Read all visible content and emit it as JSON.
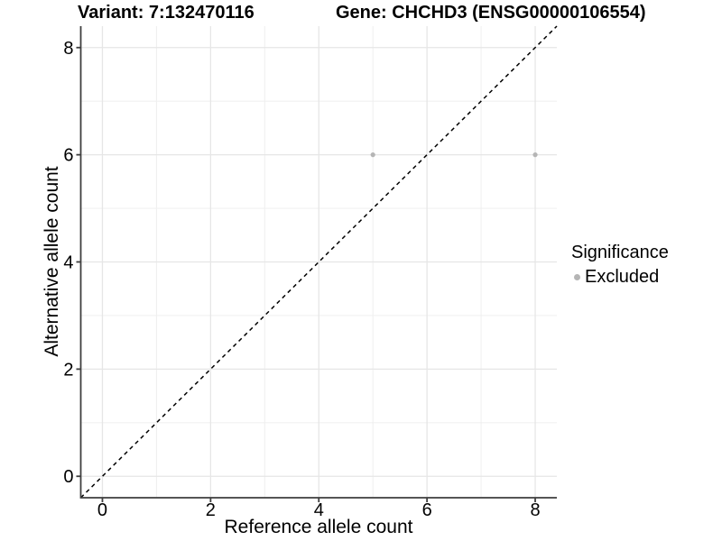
{
  "chart_data": {
    "type": "scatter",
    "titles": [
      "Variant: 7:132470116",
      "Gene: CHCHD3 (ENSG00000106554)"
    ],
    "xlabel": "Reference allele count",
    "ylabel": "Alternative allele count",
    "xlim": [
      -0.4,
      8.4
    ],
    "ylim": [
      -0.4,
      8.4
    ],
    "x_ticks": [
      0,
      2,
      4,
      6,
      8
    ],
    "y_ticks": [
      0,
      2,
      4,
      6,
      8
    ],
    "x_minor_ticks": [
      1,
      3,
      5,
      7
    ],
    "y_minor_ticks": [
      1,
      3,
      5,
      7
    ],
    "grid": "major and minor gridlines on white panel",
    "series": [
      {
        "name": "Excluded",
        "marker": "circle",
        "color": "#b5b5b5",
        "points": [
          {
            "x": 5,
            "y": 6
          },
          {
            "x": 8,
            "y": 6
          }
        ]
      }
    ],
    "reference_line": {
      "kind": "identity y=x",
      "style": "dashed",
      "color": "#000000"
    },
    "legend": {
      "title": "Significance",
      "position": "right",
      "entries": [
        {
          "label": "Excluded",
          "color": "#b5b5b5",
          "marker": "circle"
        }
      ]
    }
  },
  "colors": {
    "background": "#ffffff",
    "axis_line": "#3f3f3f",
    "grid_major": "#e6e6e6",
    "grid_minor": "#f0f0f0",
    "point_excluded": "#b5b5b5",
    "reference_line": "#000000",
    "text": "#000000"
  }
}
